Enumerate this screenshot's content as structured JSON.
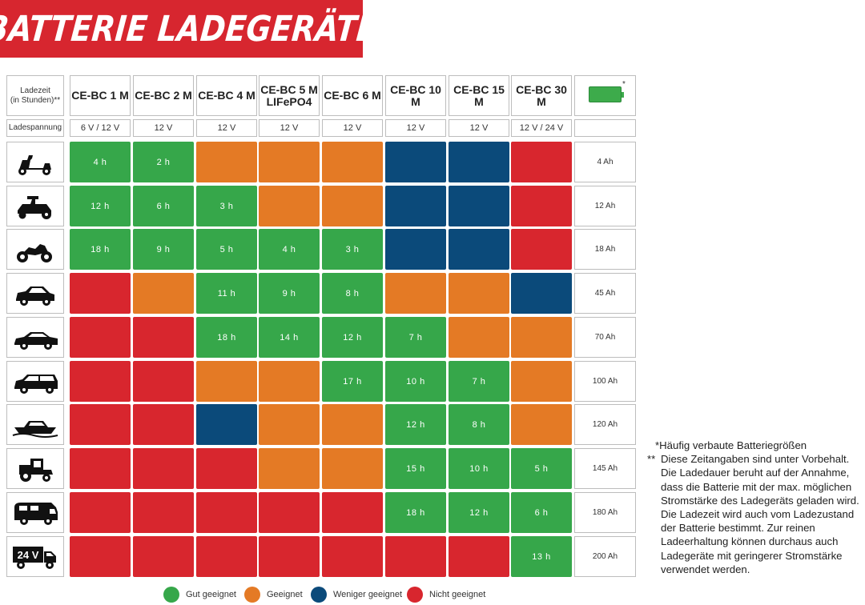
{
  "title": "BATTERIE LADEGERÄTE",
  "header": {
    "time_label": "Ladezeit\n(in Stunden)**",
    "voltage_label": "Ladespannung",
    "battery_star": "*"
  },
  "models": [
    {
      "name": "CE-BC 1 M",
      "voltage": "6 V / 12 V"
    },
    {
      "name": "CE-BC 2 M",
      "voltage": "12 V"
    },
    {
      "name": "CE-BC 4 M",
      "voltage": "12 V"
    },
    {
      "name": "CE-BC 5 M\nLIFePO4",
      "voltage": "12 V"
    },
    {
      "name": "CE-BC 6 M",
      "voltage": "12 V"
    },
    {
      "name": "CE-BC 10 M",
      "voltage": "12 V"
    },
    {
      "name": "CE-BC 15 M",
      "voltage": "12 V"
    },
    {
      "name": "CE-BC 30 M",
      "voltage": "12 V / 24 V"
    }
  ],
  "colors": {
    "G": "#36a74a",
    "O": "#e47a25",
    "B": "#0b4a7a",
    "R": "#d8262e",
    "banner": "#d7262f"
  },
  "rows": [
    {
      "icon": "scooter-icon",
      "capacity": "4 Ah",
      "status": [
        "G",
        "G",
        "O",
        "O",
        "O",
        "B",
        "B",
        "R"
      ],
      "times": [
        "4 h",
        "2 h",
        "",
        "",
        "",
        "",
        "",
        ""
      ]
    },
    {
      "icon": "lawn-tractor-icon",
      "capacity": "12 Ah",
      "status": [
        "G",
        "G",
        "G",
        "O",
        "O",
        "B",
        "B",
        "R"
      ],
      "times": [
        "12 h",
        "6 h",
        "3 h",
        "",
        "",
        "",
        "",
        ""
      ]
    },
    {
      "icon": "motorcycle-icon",
      "capacity": "18 Ah",
      "status": [
        "G",
        "G",
        "G",
        "G",
        "G",
        "B",
        "B",
        "R"
      ],
      "times": [
        "18 h",
        "9 h",
        "5 h",
        "4 h",
        "3 h",
        "",
        "",
        ""
      ]
    },
    {
      "icon": "small-car-icon",
      "capacity": "45 Ah",
      "status": [
        "R",
        "O",
        "G",
        "G",
        "G",
        "O",
        "O",
        "B"
      ],
      "times": [
        "",
        "",
        "11 h",
        "9 h",
        "8 h",
        "",
        "",
        ""
      ]
    },
    {
      "icon": "sedan-icon",
      "capacity": "70 Ah",
      "status": [
        "R",
        "R",
        "G",
        "G",
        "G",
        "G",
        "O",
        "O"
      ],
      "times": [
        "",
        "",
        "18 h",
        "14 h",
        "12 h",
        "7 h",
        "",
        ""
      ]
    },
    {
      "icon": "station-wagon-icon",
      "capacity": "100 Ah",
      "status": [
        "R",
        "R",
        "O",
        "O",
        "G",
        "G",
        "G",
        "O"
      ],
      "times": [
        "",
        "",
        "",
        "",
        "17 h",
        "10 h",
        "7 h",
        ""
      ]
    },
    {
      "icon": "boat-icon",
      "capacity": "120 Ah",
      "status": [
        "R",
        "R",
        "B",
        "O",
        "O",
        "G",
        "G",
        "O"
      ],
      "times": [
        "",
        "",
        "",
        "",
        "",
        "12 h",
        "8 h",
        ""
      ]
    },
    {
      "icon": "tractor-icon",
      "capacity": "145 Ah",
      "status": [
        "R",
        "R",
        "R",
        "O",
        "O",
        "G",
        "G",
        "G"
      ],
      "times": [
        "",
        "",
        "",
        "",
        "",
        "15 h",
        "10 h",
        "5 h"
      ]
    },
    {
      "icon": "camper-icon",
      "capacity": "180 Ah",
      "status": [
        "R",
        "R",
        "R",
        "R",
        "R",
        "G",
        "G",
        "G"
      ],
      "times": [
        "",
        "",
        "",
        "",
        "",
        "18 h",
        "12 h",
        "6 h"
      ]
    },
    {
      "icon": "truck-24v-icon",
      "truck_label": "24 V",
      "capacity": "200 Ah",
      "status": [
        "R",
        "R",
        "R",
        "R",
        "R",
        "R",
        "R",
        "G"
      ],
      "times": [
        "",
        "",
        "",
        "",
        "",
        "",
        "",
        "13 h"
      ]
    }
  ],
  "notes": {
    "line1": "*Häufig verbaute Batteriegrößen",
    "line2_mark": "**",
    "line2": "Diese Zeitangaben sind unter Vorbehalt. Die Ladedauer beruht auf der Annahme, dass die Batterie mit der max. möglichen Stromstärke des Ladegeräts geladen wird. Die Ladezeit wird auch vom Ladezustand der Batterie bestimmt. Zur reinen Ladeerhaltung können durchaus auch Ladegeräte mit geringerer Stromstärke verwendet werden."
  },
  "legend": [
    {
      "key": "G",
      "label": "Gut geeignet"
    },
    {
      "key": "O",
      "label": "Geeignet"
    },
    {
      "key": "B",
      "label": "Weniger geeignet"
    },
    {
      "key": "R",
      "label": "Nicht geeignet"
    }
  ]
}
